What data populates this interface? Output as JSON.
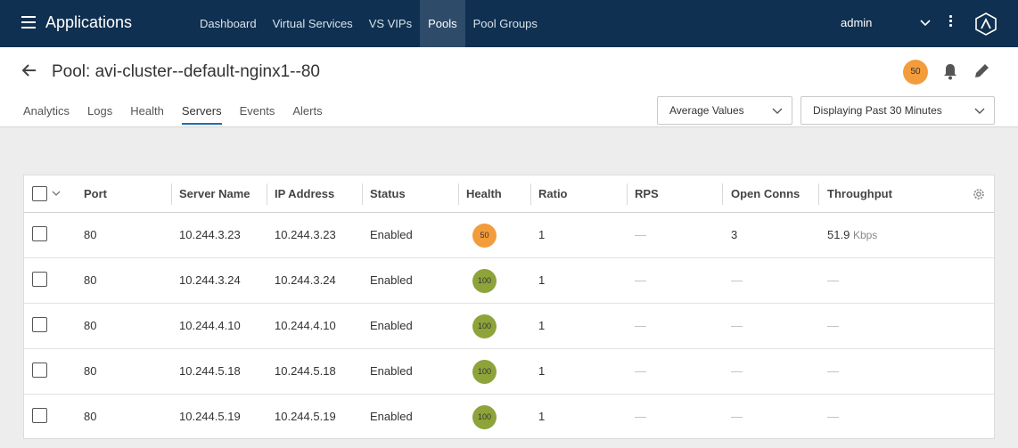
{
  "topbar": {
    "app_title": "Applications",
    "nav": [
      {
        "label": "Dashboard",
        "active": false
      },
      {
        "label": "Virtual Services",
        "active": false
      },
      {
        "label": "VS VIPs",
        "active": false
      },
      {
        "label": "Pools",
        "active": true
      },
      {
        "label": "Pool Groups",
        "active": false
      }
    ],
    "user": "admin"
  },
  "header": {
    "title": "Pool: avi-cluster--default-nginx1--80",
    "health_score": "50",
    "tabs": [
      {
        "label": "Analytics",
        "active": false
      },
      {
        "label": "Logs",
        "active": false
      },
      {
        "label": "Health",
        "active": false
      },
      {
        "label": "Servers",
        "active": true
      },
      {
        "label": "Events",
        "active": false
      },
      {
        "label": "Alerts",
        "active": false
      }
    ],
    "values_dropdown": "Average Values",
    "time_dropdown": "Displaying Past 30 Minutes"
  },
  "table": {
    "columns": [
      "Port",
      "Server Name",
      "IP Address",
      "Status",
      "Health",
      "Ratio",
      "RPS",
      "Open Conns",
      "Throughput"
    ],
    "rows": [
      {
        "port": "80",
        "server_name": "10.244.3.23",
        "ip": "10.244.3.23",
        "status": "Enabled",
        "health": "50",
        "ratio": "1",
        "rps": "—",
        "open_conns": "3",
        "throughput": "51.9",
        "throughput_unit": "Kbps"
      },
      {
        "port": "80",
        "server_name": "10.244.3.24",
        "ip": "10.244.3.24",
        "status": "Enabled",
        "health": "100",
        "ratio": "1",
        "rps": "—",
        "open_conns": "—",
        "throughput": "—",
        "throughput_unit": ""
      },
      {
        "port": "80",
        "server_name": "10.244.4.10",
        "ip": "10.244.4.10",
        "status": "Enabled",
        "health": "100",
        "ratio": "1",
        "rps": "—",
        "open_conns": "—",
        "throughput": "—",
        "throughput_unit": ""
      },
      {
        "port": "80",
        "server_name": "10.244.5.18",
        "ip": "10.244.5.18",
        "status": "Enabled",
        "health": "100",
        "ratio": "1",
        "rps": "—",
        "open_conns": "—",
        "throughput": "—",
        "throughput_unit": ""
      },
      {
        "port": "80",
        "server_name": "10.244.5.19",
        "ip": "10.244.5.19",
        "status": "Enabled",
        "health": "100",
        "ratio": "1",
        "rps": "—",
        "open_conns": "—",
        "throughput": "—",
        "throughput_unit": ""
      }
    ]
  },
  "colors": {
    "topbar": "#0f3050",
    "health_50": "#f39c3b",
    "health_100": "#8ea33a",
    "active_tab": "#1f6fa8"
  }
}
